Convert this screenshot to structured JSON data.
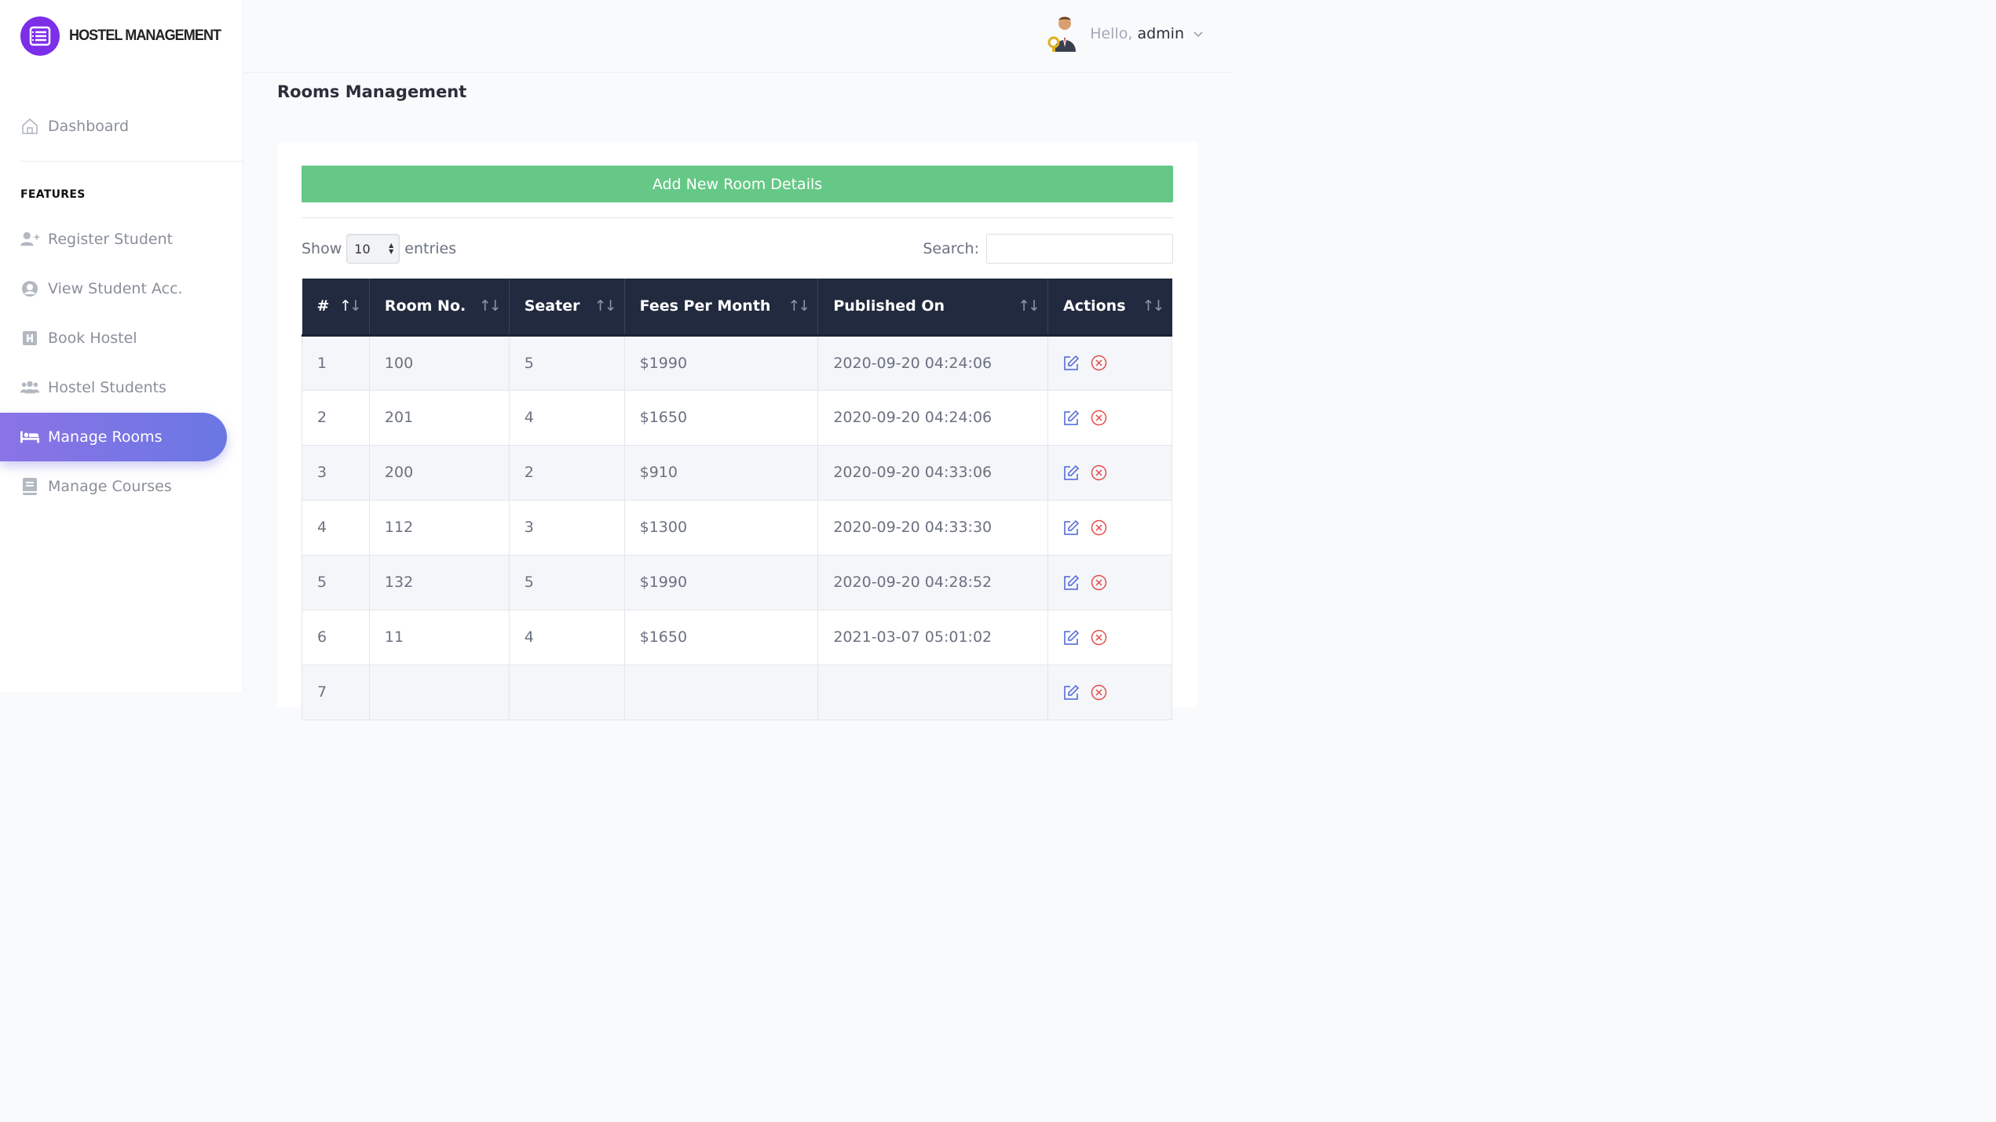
{
  "brand": {
    "name": "HOSTEL MANAGEMENT"
  },
  "sidebar": {
    "dashboard": "Dashboard",
    "section_label": "FEATURES",
    "items": [
      {
        "label": "Register Student",
        "icon": "user-plus-icon"
      },
      {
        "label": "View Student Acc.",
        "icon": "user-circle-icon"
      },
      {
        "label": "Book Hostel",
        "icon": "hostel-h-icon"
      },
      {
        "label": "Hostel Students",
        "icon": "users-group-icon"
      },
      {
        "label": "Manage Rooms",
        "icon": "bed-icon",
        "active": true
      },
      {
        "label": "Manage Courses",
        "icon": "book-icon"
      }
    ]
  },
  "header": {
    "greeting": "Hello,",
    "username": "admin"
  },
  "page": {
    "title": "Rooms Management"
  },
  "toolbar": {
    "add_label": "Add New Room Details",
    "show_label": "Show",
    "entries_value": "10",
    "entries_label": "entries",
    "search_label": "Search:",
    "search_value": ""
  },
  "table": {
    "headers": [
      "#",
      "Room No.",
      "Seater",
      "Fees Per Month",
      "Published On",
      "Actions"
    ],
    "rows": [
      [
        "1",
        "100",
        "5",
        "$1990",
        "2020-09-20 04:24:06"
      ],
      [
        "2",
        "201",
        "4",
        "$1650",
        "2020-09-20 04:24:06"
      ],
      [
        "3",
        "200",
        "2",
        "$910",
        "2020-09-20 04:33:06"
      ],
      [
        "4",
        "112",
        "3",
        "$1300",
        "2020-09-20 04:33:30"
      ],
      [
        "5",
        "132",
        "5",
        "$1990",
        "2020-09-20 04:28:52"
      ],
      [
        "6",
        "11",
        "4",
        "$1650",
        "2021-03-07 05:01:02"
      ],
      [
        "7",
        "",
        "",
        "",
        ""
      ]
    ]
  },
  "colors": {
    "accent_purple": "#7c2ee8",
    "active_nav": "#7b74e5",
    "add_button": "#66c886",
    "table_header": "#212a3e",
    "edit_icon": "#4a62d8",
    "delete_icon": "#e34c4c"
  }
}
